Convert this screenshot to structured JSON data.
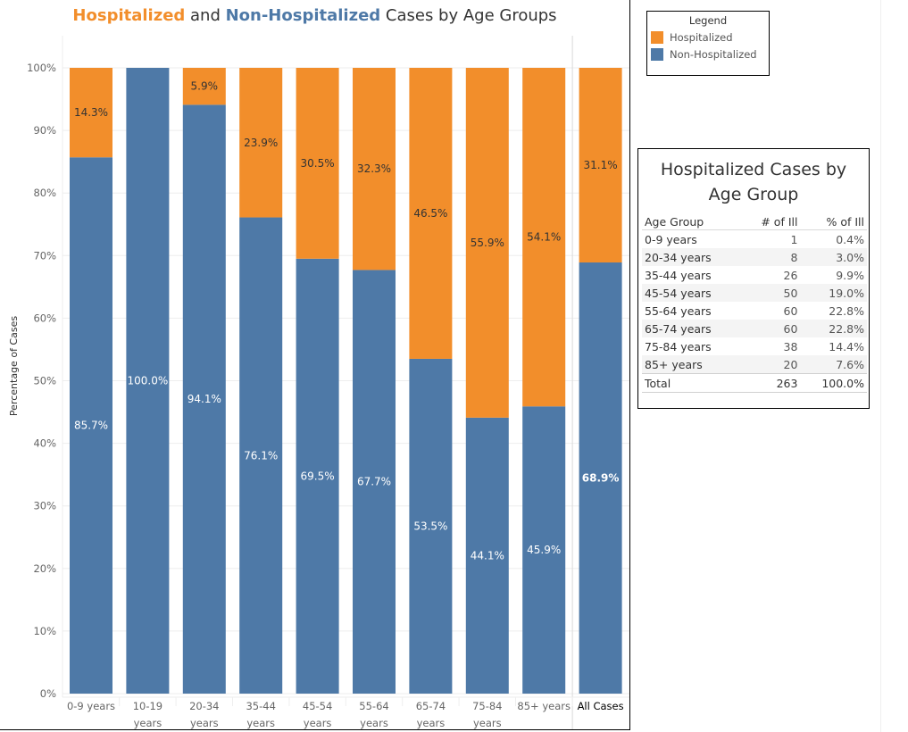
{
  "title": {
    "part1": "Hospitalized",
    "part2": " and ",
    "part3": "Non-Hospitalized",
    "part4": " Cases by Age Groups"
  },
  "colors": {
    "hospitalized": "#f28e2b",
    "non_hospitalized": "#4e79a7",
    "grid": "#eeeeee",
    "axis_text": "#666666"
  },
  "legend": {
    "title": "Legend",
    "items": [
      {
        "label": "Hospitalized",
        "color": "#f28e2b"
      },
      {
        "label": "Non-Hospitalized",
        "color": "#4e79a7"
      }
    ]
  },
  "chart_data": {
    "type": "bar",
    "stacked": true,
    "title": "Hospitalized and Non-Hospitalized Cases by Age Groups",
    "xlabel": "",
    "ylabel": "Percentage of Cases",
    "ylim": [
      0,
      100
    ],
    "yticks": [
      "0%",
      "10%",
      "20%",
      "30%",
      "40%",
      "50%",
      "60%",
      "70%",
      "80%",
      "90%",
      "100%"
    ],
    "grid": true,
    "categories": [
      [
        "0-9 years"
      ],
      [
        "10-19",
        "years"
      ],
      [
        "20-34",
        "years"
      ],
      [
        "35-44",
        "years"
      ],
      [
        "45-54",
        "years"
      ],
      [
        "55-64",
        "years"
      ],
      [
        "65-74",
        "years"
      ],
      [
        "75-84",
        "years"
      ],
      [
        "85+ years"
      ],
      [
        "All Cases"
      ]
    ],
    "series": [
      {
        "name": "Non-Hospitalized",
        "color": "#4e79a7",
        "values": [
          85.7,
          100.0,
          94.1,
          76.1,
          69.5,
          67.7,
          53.5,
          44.1,
          45.9,
          68.9
        ],
        "labels": [
          "85.7%",
          "100.0%",
          "94.1%",
          "76.1%",
          "69.5%",
          "67.7%",
          "53.5%",
          "44.1%",
          "45.9%",
          "68.9%"
        ]
      },
      {
        "name": "Hospitalized",
        "color": "#f28e2b",
        "values": [
          14.3,
          0,
          5.9,
          23.9,
          30.5,
          32.3,
          46.5,
          55.9,
          54.1,
          31.1
        ],
        "labels": [
          "14.3%",
          "",
          "5.9%",
          "23.9%",
          "30.5%",
          "32.3%",
          "46.5%",
          "55.9%",
          "54.1%",
          "31.1%"
        ]
      }
    ],
    "legend_position": "top-right"
  },
  "table": {
    "title": "Hospitalized Cases by Age Group",
    "headers": [
      "Age Group",
      "# of Ill",
      "% of Ill"
    ],
    "rows": [
      [
        "0-9 years",
        "1",
        "0.4%"
      ],
      [
        "20-34 years",
        "8",
        "3.0%"
      ],
      [
        "35-44 years",
        "26",
        "9.9%"
      ],
      [
        "45-54 years",
        "50",
        "19.0%"
      ],
      [
        "55-64 years",
        "60",
        "22.8%"
      ],
      [
        "65-74 years",
        "60",
        "22.8%"
      ],
      [
        "75-84 years",
        "38",
        "14.4%"
      ],
      [
        "85+ years",
        "20",
        "7.6%"
      ]
    ],
    "total": [
      "Total",
      "263",
      "100.0%"
    ]
  }
}
